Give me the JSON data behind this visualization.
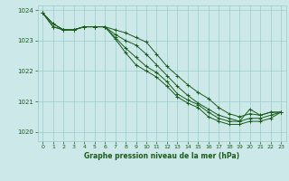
{
  "title": "Graphe pression niveau de la mer (hPa)",
  "bg_color": "#cce8e8",
  "grid_color": "#99cccc",
  "line_color": "#1a5c1a",
  "xlim": [
    -0.5,
    23.5
  ],
  "ylim": [
    1019.7,
    1024.15
  ],
  "yticks": [
    1020,
    1021,
    1022,
    1023,
    1024
  ],
  "xticks": [
    0,
    1,
    2,
    3,
    4,
    5,
    6,
    7,
    8,
    9,
    10,
    11,
    12,
    13,
    14,
    15,
    16,
    17,
    18,
    19,
    20,
    21,
    22,
    23
  ],
  "series": [
    [
      1023.9,
      1023.55,
      1023.35,
      1023.35,
      1023.45,
      1023.45,
      1023.45,
      1023.35,
      1023.25,
      1023.1,
      1022.95,
      1022.55,
      1022.15,
      1021.85,
      1021.55,
      1021.3,
      1021.1,
      1020.8,
      1020.6,
      1020.5,
      1020.6,
      1020.55,
      1020.65,
      1020.65
    ],
    [
      1023.9,
      1023.55,
      1023.35,
      1023.35,
      1023.45,
      1023.45,
      1023.45,
      1023.2,
      1023.0,
      1022.85,
      1022.55,
      1022.2,
      1021.85,
      1021.5,
      1021.2,
      1020.95,
      1020.75,
      1020.55,
      1020.45,
      1020.35,
      1020.75,
      1020.55,
      1020.65,
      1020.65
    ],
    [
      1023.9,
      1023.45,
      1023.35,
      1023.35,
      1023.45,
      1023.45,
      1023.45,
      1023.1,
      1022.75,
      1022.45,
      1022.15,
      1021.95,
      1021.65,
      1021.25,
      1021.05,
      1020.9,
      1020.65,
      1020.45,
      1020.35,
      1020.35,
      1020.45,
      1020.45,
      1020.55,
      1020.65
    ],
    [
      1023.9,
      1023.45,
      1023.35,
      1023.35,
      1023.45,
      1023.45,
      1023.45,
      1023.05,
      1022.6,
      1022.2,
      1022.0,
      1021.8,
      1021.5,
      1021.15,
      1020.95,
      1020.8,
      1020.5,
      1020.35,
      1020.25,
      1020.25,
      1020.35,
      1020.35,
      1020.45,
      1020.65
    ]
  ]
}
